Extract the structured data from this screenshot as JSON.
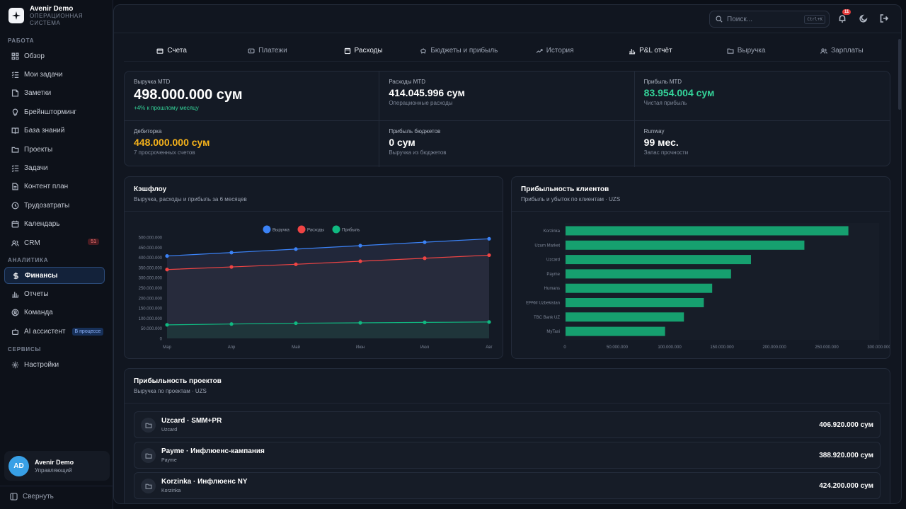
{
  "brand": {
    "name": "Avenir Demo",
    "subtitle_1": "ОПЕРАЦИОННАЯ",
    "subtitle_2": "СИСТЕМА"
  },
  "sidebar": {
    "sections": [
      {
        "title": "РАБОТА",
        "items": [
          {
            "label": "Обзор",
            "icon": "grid-icon"
          },
          {
            "label": "Мои задачи",
            "icon": "list-check-icon"
          },
          {
            "label": "Заметки",
            "icon": "note-icon"
          },
          {
            "label": "Брейншторминг",
            "icon": "lightbulb-icon"
          },
          {
            "label": "База знаний",
            "icon": "book-icon"
          },
          {
            "label": "Проекты",
            "icon": "folder-icon"
          },
          {
            "label": "Задачи",
            "icon": "tasks-icon"
          },
          {
            "label": "Контент план",
            "icon": "document-icon"
          },
          {
            "label": "Трудозатраты",
            "icon": "clock-icon"
          },
          {
            "label": "Календарь",
            "icon": "calendar-icon"
          },
          {
            "label": "CRM",
            "icon": "users-icon",
            "badge": "51"
          }
        ]
      },
      {
        "title": "АНАЛИТИКА",
        "items": [
          {
            "label": "Финансы",
            "icon": "dollar-icon",
            "active": true
          },
          {
            "label": "Отчеты",
            "icon": "bar-chart-icon"
          },
          {
            "label": "Команда",
            "icon": "user-circle-icon"
          },
          {
            "label": "AI ассистент",
            "icon": "robot-icon",
            "badge": "В процессе"
          }
        ]
      },
      {
        "title": "СЕРВИСЫ",
        "items": [
          {
            "label": "Настройки",
            "icon": "gear-icon"
          }
        ]
      }
    ]
  },
  "user": {
    "initials": "AD",
    "name": "Avenir Demo",
    "role": "Управляющий"
  },
  "collapse_label": "Свернуть",
  "topbar": {
    "search_placeholder": "Поиск...",
    "shortcut": "Ctrl+K",
    "notifications": "11"
  },
  "tabs": [
    {
      "label": "Счета",
      "icon": "wallet-icon",
      "strong": true
    },
    {
      "label": "Платежи",
      "icon": "card-icon"
    },
    {
      "label": "Расходы",
      "icon": "receipt-icon",
      "strong": true
    },
    {
      "label": "Бюджеты и прибыль",
      "icon": "piggy-icon"
    },
    {
      "label": "История",
      "icon": "trend-icon"
    },
    {
      "label": "P&L отчёт",
      "icon": "bar-chart-icon",
      "strong": true
    },
    {
      "label": "Выручка",
      "icon": "folder-icon"
    },
    {
      "label": "Зарплаты",
      "icon": "users-icon"
    }
  ],
  "kpis": [
    {
      "label": "Выручка MTD",
      "value": "498.000.000 сум",
      "sub": "+4% к прошлому месяцу",
      "color": "#ffffff",
      "sub_color": "#34d399",
      "big": true
    },
    {
      "label": "Расходы MTD",
      "value": "414.045.996 сум",
      "sub": "Операционные расходы",
      "color": "#ffffff"
    },
    {
      "label": "Прибыль MTD",
      "value": "83.954.004 сум",
      "sub": "Чистая прибыль",
      "color": "#34d399"
    },
    {
      "label": "Дебиторка",
      "value": "448.000.000 сум",
      "sub": "7 просроченных счетов",
      "color": "#f5b21b"
    },
    {
      "label": "Прибыль бюджетов",
      "value": "0 сум",
      "sub": "Выручка из бюджетов",
      "color": "#ffffff"
    },
    {
      "label": "Runway",
      "value": "99 мес.",
      "sub": "Запас прочности",
      "color": "#ffffff"
    }
  ],
  "cashflow": {
    "title": "Кэшфлоу",
    "subtitle": "Выручка, расходы и прибыль за 6 месяцев"
  },
  "clients": {
    "title": "Прибыльность клиентов",
    "subtitle": "Прибыль и убыток по клиентам · UZS"
  },
  "chart_data": [
    {
      "type": "line",
      "categories": [
        "Мар",
        "Апр",
        "Май",
        "Июн",
        "Июл",
        "Авг"
      ],
      "series": [
        {
          "name": "Выручка",
          "color": "#3b82f6",
          "values": [
            407000000,
            424000000,
            441000000,
            458000000,
            475000000,
            492000000
          ]
        },
        {
          "name": "Расходы",
          "color": "#ef4444",
          "values": [
            340000000,
            353000000,
            366000000,
            381000000,
            396000000,
            411000000
          ]
        },
        {
          "name": "Прибыль",
          "color": "#10b981",
          "values": [
            67000000,
            71000000,
            75000000,
            77000000,
            79000000,
            81000000
          ]
        }
      ],
      "yticks": [
        "0",
        "50.000.000",
        "100.000.000",
        "150.000.000",
        "200.000.000",
        "250.000.000",
        "300.000.000",
        "350.000.000",
        "400.000.000",
        "450.000.000",
        "500.000.000"
      ],
      "ylim": [
        0,
        500000000
      ],
      "legend": "top-center",
      "area": true
    },
    {
      "type": "bar",
      "orientation": "horizontal",
      "categories": [
        "Korzinka",
        "Uzum Market",
        "Uzcard",
        "Payme",
        "Humans",
        "EPAM Uzbekistan",
        "TBC Bank UZ",
        "MyTaxi"
      ],
      "values": [
        270000000,
        228000000,
        177000000,
        158000000,
        140000000,
        132000000,
        113000000,
        95000000
      ],
      "color": "#16a06f",
      "xticks": [
        "0",
        "50.000.000",
        "100.000.000",
        "150.000.000",
        "200.000.000",
        "250.000.000",
        "300.000.000"
      ],
      "xlim": [
        0,
        300000000
      ]
    }
  ],
  "projects": {
    "title": "Прибыльность проектов",
    "subtitle": "Выручка по проектам · UZS",
    "rows": [
      {
        "name": "Uzcard · SMM+PR",
        "client": "Uzcard",
        "amount": "406.920.000 сум"
      },
      {
        "name": "Payme · Инфлюенс-кампания",
        "client": "Payme",
        "amount": "388.920.000 сум"
      },
      {
        "name": "Korzinka · Инфлюенс NY",
        "client": "Korzinka",
        "amount": "424.200.000 сум"
      }
    ]
  }
}
